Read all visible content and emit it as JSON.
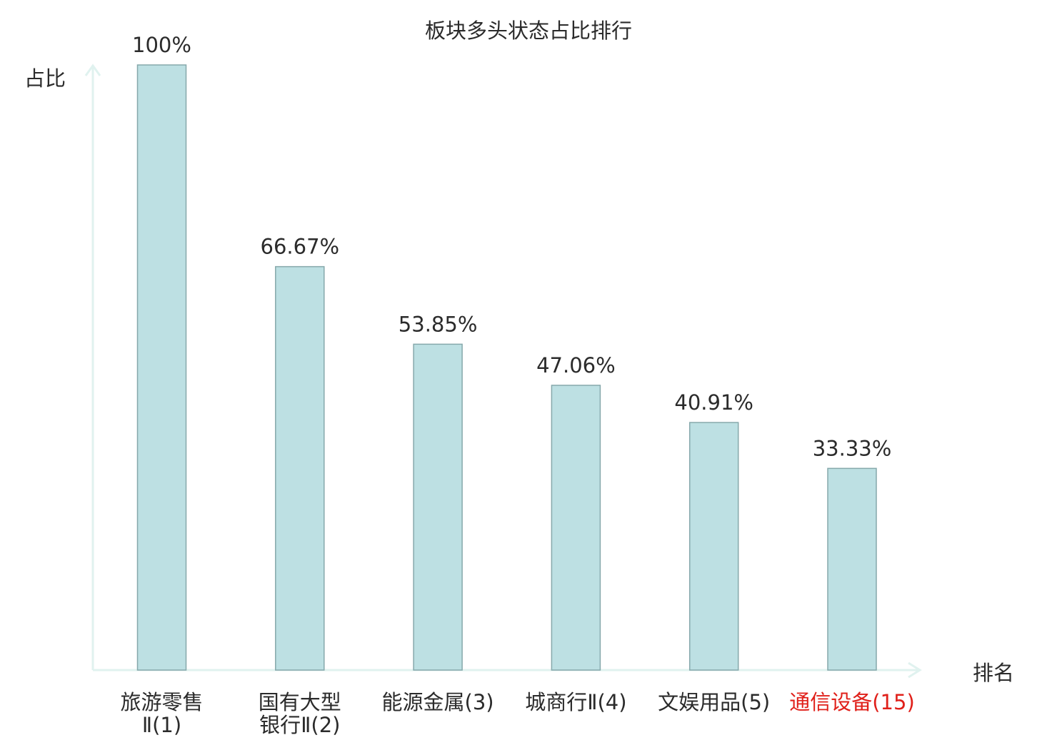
{
  "chart_data": {
    "type": "bar",
    "title": "板块多头状态占比排行",
    "ylabel": "占比",
    "xlabel": "排名",
    "ylim": [
      0,
      100
    ],
    "grid": false,
    "categories": [
      {
        "lines": [
          "旅游零售",
          "Ⅱ(1)"
        ],
        "highlight": false
      },
      {
        "lines": [
          "国有大型",
          "银行Ⅱ(2)"
        ],
        "highlight": false
      },
      {
        "lines": [
          "能源金属(3)"
        ],
        "highlight": false
      },
      {
        "lines": [
          "城商行Ⅱ(4)"
        ],
        "highlight": false
      },
      {
        "lines": [
          "文娱用品(5)"
        ],
        "highlight": false
      },
      {
        "lines": [
          "通信设备(15)"
        ],
        "highlight": true
      }
    ],
    "values": [
      100,
      66.67,
      53.85,
      47.06,
      40.91,
      33.33
    ],
    "value_labels": [
      "100%",
      "66.67%",
      "53.85%",
      "47.06%",
      "40.91%",
      "33.33%"
    ],
    "colors": {
      "bar_fill": "#bde0e3",
      "bar_stroke": "#86a8ab",
      "axis": "#e0f2ef",
      "text": "#2b2b2b",
      "highlight_text": "#e0201a"
    }
  }
}
